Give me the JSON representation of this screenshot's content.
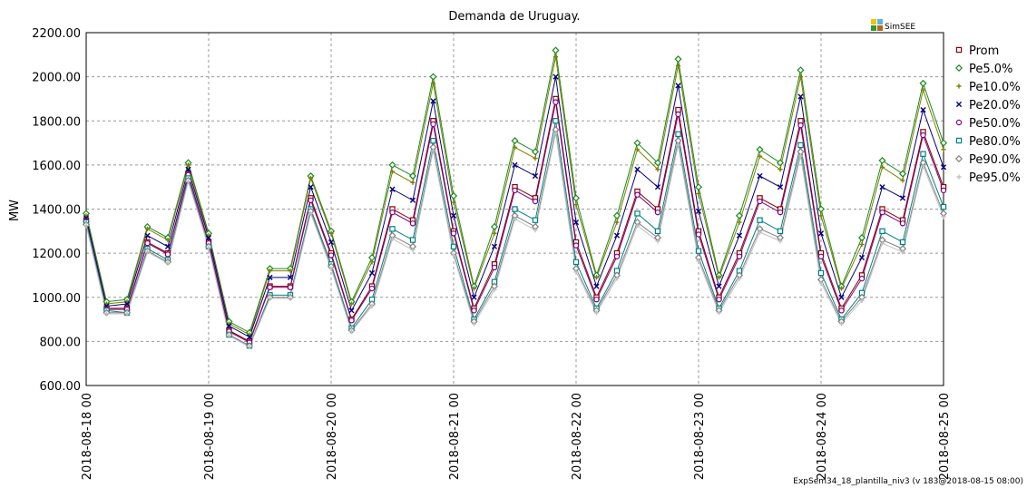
{
  "chart_data": {
    "type": "line",
    "title": "Demanda de Uruguay.",
    "y_label": "MW",
    "logo": "SimSEE",
    "footer": "ExpSem34_18_plantilla_niv3 (v 183@2018-08-15 08:00)",
    "grid": true,
    "legend": "right",
    "x": [
      "2018-08-18 00",
      "2018-08-18 04",
      "2018-08-18 08",
      "2018-08-18 12",
      "2018-08-18 16",
      "2018-08-18 20",
      "2018-08-19 00",
      "2018-08-19 04",
      "2018-08-19 08",
      "2018-08-19 12",
      "2018-08-19 16",
      "2018-08-19 20",
      "2018-08-20 00",
      "2018-08-20 04",
      "2018-08-20 08",
      "2018-08-20 12",
      "2018-08-20 16",
      "2018-08-20 20",
      "2018-08-21 00",
      "2018-08-21 04",
      "2018-08-21 08",
      "2018-08-21 12",
      "2018-08-21 16",
      "2018-08-21 20",
      "2018-08-22 00",
      "2018-08-22 04",
      "2018-08-22 08",
      "2018-08-22 12",
      "2018-08-22 16",
      "2018-08-22 20",
      "2018-08-23 00",
      "2018-08-23 04",
      "2018-08-23 08",
      "2018-08-23 12",
      "2018-08-23 16",
      "2018-08-23 20",
      "2018-08-24 00",
      "2018-08-24 04",
      "2018-08-24 08",
      "2018-08-24 12",
      "2018-08-24 16",
      "2018-08-24 20",
      "2018-08-25 00"
    ],
    "xlim": [
      "2018-08-18 00",
      "2018-08-25 00"
    ],
    "xticks": [
      "2018-08-18 00",
      "2018-08-19 00",
      "2018-08-20 00",
      "2018-08-21 00",
      "2018-08-22 00",
      "2018-08-23 00",
      "2018-08-24 00",
      "2018-08-25 00"
    ],
    "ylim": [
      600,
      2200
    ],
    "yticks": [
      {
        "value": 600,
        "label": "600.00"
      },
      {
        "value": 800,
        "label": "800.00"
      },
      {
        "value": 1000,
        "label": "1000.00"
      },
      {
        "value": 1200,
        "label": "1200.00"
      },
      {
        "value": 1400,
        "label": "1400.00"
      },
      {
        "value": 1600,
        "label": "1600.00"
      },
      {
        "value": 1800,
        "label": "1800.00"
      },
      {
        "value": 2000,
        "label": "2000.00"
      },
      {
        "value": 2200,
        "label": "2200.00"
      }
    ],
    "series": [
      {
        "name": "Prom",
        "color": "#8b0000",
        "marker": "square",
        "values": [
          1350,
          950,
          950,
          1250,
          1200,
          1560,
          1250,
          850,
          800,
          1050,
          1050,
          1450,
          1200,
          900,
          1050,
          1400,
          1350,
          1800,
          1300,
          950,
          1150,
          1500,
          1450,
          1900,
          1250,
          1000,
          1200,
          1480,
          1400,
          1850,
          1300,
          1000,
          1200,
          1450,
          1400,
          1800,
          1200,
          950,
          1100,
          1400,
          1350,
          1750,
          1500
        ]
      },
      {
        "name": "Pe5.0%",
        "color": "#1a8a1a",
        "marker": "diamond",
        "values": [
          1380,
          980,
          990,
          1320,
          1270,
          1610,
          1290,
          890,
          840,
          1130,
          1130,
          1550,
          1300,
          980,
          1180,
          1600,
          1550,
          2000,
          1460,
          1050,
          1320,
          1710,
          1660,
          2120,
          1450,
          1100,
          1370,
          1700,
          1610,
          2080,
          1500,
          1100,
          1370,
          1670,
          1610,
          2030,
          1400,
          1050,
          1270,
          1620,
          1560,
          1970,
          1700
        ]
      },
      {
        "name": "Pe10.0%",
        "color": "#808000",
        "marker": "plus",
        "values": [
          1370,
          970,
          980,
          1310,
          1260,
          1600,
          1280,
          880,
          830,
          1120,
          1120,
          1540,
          1290,
          970,
          1160,
          1570,
          1520,
          1970,
          1430,
          1040,
          1290,
          1680,
          1630,
          2090,
          1420,
          1090,
          1340,
          1670,
          1580,
          2050,
          1470,
          1090,
          1340,
          1640,
          1580,
          2000,
          1370,
          1040,
          1240,
          1590,
          1530,
          1940,
          1670
        ]
      },
      {
        "name": "Pe20.0%",
        "color": "#000080",
        "marker": "cross",
        "values": [
          1360,
          960,
          970,
          1280,
          1230,
          1580,
          1270,
          870,
          820,
          1090,
          1090,
          1500,
          1250,
          940,
          1110,
          1490,
          1440,
          1890,
          1370,
          1000,
          1230,
          1600,
          1550,
          2000,
          1340,
          1050,
          1280,
          1580,
          1500,
          1960,
          1390,
          1050,
          1280,
          1550,
          1500,
          1910,
          1290,
          1000,
          1180,
          1500,
          1450,
          1850,
          1590
        ]
      },
      {
        "name": "Pe50.0%",
        "color": "#800080",
        "marker": "circle",
        "values": [
          1345,
          945,
          945,
          1245,
          1195,
          1555,
          1245,
          845,
          795,
          1045,
          1045,
          1440,
          1190,
          895,
          1040,
          1385,
          1335,
          1785,
          1290,
          940,
          1135,
          1485,
          1435,
          1885,
          1235,
          990,
          1185,
          1465,
          1385,
          1830,
          1285,
          990,
          1185,
          1435,
          1385,
          1780,
          1185,
          940,
          1085,
          1385,
          1335,
          1735,
          1485
        ]
      },
      {
        "name": "Pe80.0%",
        "color": "#008080",
        "marker": "square",
        "values": [
          1340,
          940,
          930,
          1220,
          1170,
          1540,
          1230,
          830,
          780,
          1010,
          1010,
          1400,
          1150,
          860,
          990,
          1310,
          1260,
          1710,
          1230,
          900,
          1070,
          1400,
          1350,
          1800,
          1160,
          950,
          1120,
          1380,
          1300,
          1740,
          1210,
          950,
          1120,
          1350,
          1300,
          1690,
          1110,
          900,
          1020,
          1300,
          1250,
          1650,
          1410
        ]
      },
      {
        "name": "Pe90.0%",
        "color": "#808080",
        "marker": "diamond",
        "values": [
          1330,
          930,
          930,
          1210,
          1160,
          1530,
          1230,
          830,
          780,
          1000,
          1000,
          1390,
          1140,
          850,
          970,
          1280,
          1230,
          1680,
          1200,
          890,
          1050,
          1370,
          1320,
          1760,
          1130,
          940,
          1100,
          1340,
          1270,
          1710,
          1180,
          940,
          1100,
          1310,
          1270,
          1660,
          1080,
          890,
          1000,
          1260,
          1220,
          1610,
          1380
        ]
      },
      {
        "name": "Pe95.0%",
        "color": "#c0c0c0",
        "marker": "plus",
        "values": [
          1325,
          925,
          925,
          1205,
          1155,
          1525,
          1225,
          825,
          775,
          995,
          995,
          1380,
          1130,
          845,
          960,
          1265,
          1215,
          1665,
          1190,
          880,
          1035,
          1355,
          1305,
          1745,
          1115,
          930,
          1085,
          1325,
          1255,
          1690,
          1165,
          930,
          1085,
          1295,
          1255,
          1640,
          1065,
          880,
          985,
          1245,
          1205,
          1595,
          1365
        ]
      }
    ]
  }
}
